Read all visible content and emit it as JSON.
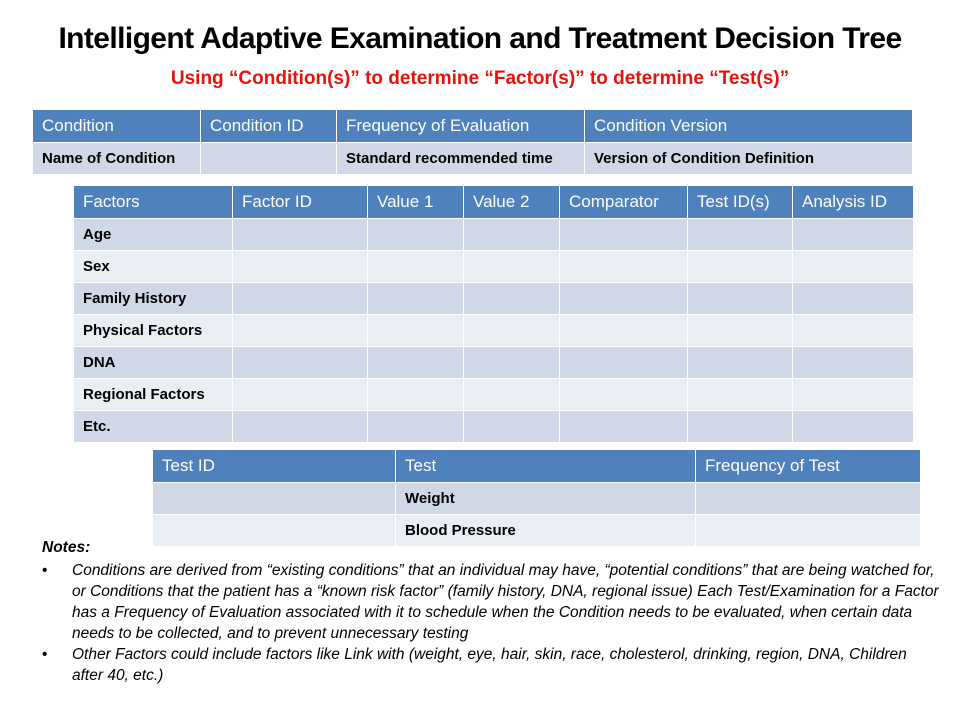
{
  "title": "Intelligent Adaptive Examination and Treatment Decision Tree",
  "subtitle": "Using “Condition(s)” to determine “Factor(s)” to determine “Test(s)”",
  "condition_table": {
    "headers": [
      "Condition",
      "Condition ID",
      "Frequency of Evaluation",
      "Condition Version"
    ],
    "row": [
      "Name of Condition",
      "",
      "Standard recommended time",
      "Version of Condition Definition"
    ]
  },
  "factor_table": {
    "headers": [
      "Factors",
      "Factor ID",
      "Value 1",
      "Value 2",
      "Comparator",
      "Test ID(s)",
      "Analysis ID"
    ],
    "rows": [
      "Age",
      "Sex",
      "Family History",
      "Physical Factors",
      "DNA",
      "Regional Factors",
      "Etc."
    ]
  },
  "test_table": {
    "headers": [
      "Test ID",
      "Test",
      "Frequency of Test"
    ],
    "rows": [
      [
        "",
        "Weight",
        ""
      ],
      [
        "",
        "Blood Pressure",
        ""
      ]
    ]
  },
  "notes": {
    "heading": "Notes:",
    "bullet_glyph": "•",
    "items": [
      "Conditions are derived from “existing conditions” that an individual may have, “potential conditions” that are being watched for, or Conditions that the patient has a “known risk factor” (family history, DNA, regional issue) Each Test/Examination for a Factor has a Frequency of Evaluation associated with it to schedule when the Condition needs to be evaluated, when certain data needs to be collected, and to prevent unnecessary testing",
      "Other Factors could include factors like Link with (weight, eye, hair, skin, race, cholesterol, drinking, region, DNA, Children after 40, etc.)"
    ]
  },
  "colors": {
    "header_blue": "#4f81bd",
    "row_dark": "#d0d8e8",
    "row_light": "#e9edf4",
    "subtitle_red": "#e8120c"
  }
}
